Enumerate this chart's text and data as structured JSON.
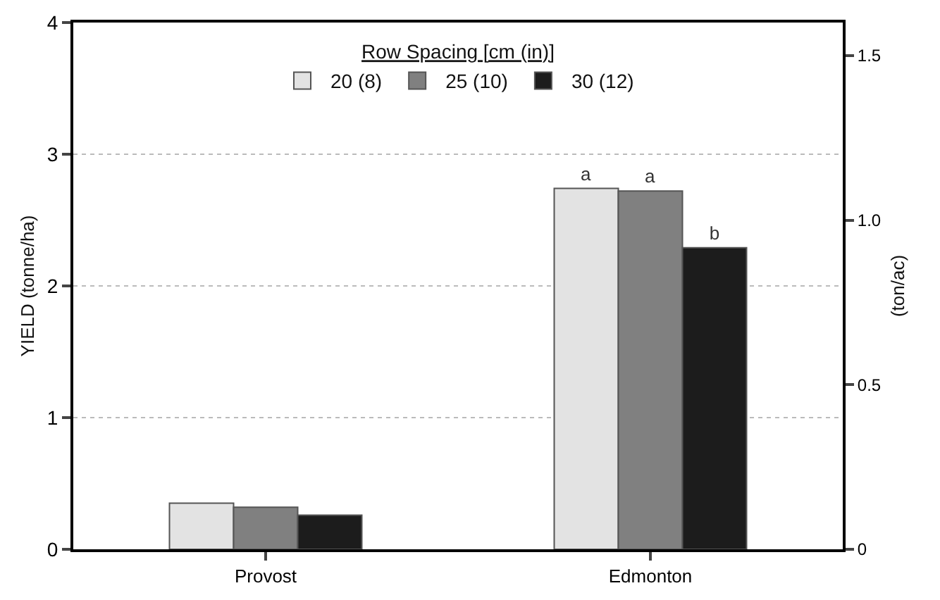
{
  "chart_data": {
    "type": "bar",
    "categories": [
      "Provost",
      "Edmonton"
    ],
    "series": [
      {
        "name": "20 (8)",
        "color": "#e3e3e3",
        "values": [
          0.35,
          2.74
        ],
        "value_labels": [
          null,
          "a"
        ]
      },
      {
        "name": "25 (10)",
        "color": "#808080",
        "values": [
          0.32,
          2.72
        ],
        "value_labels": [
          null,
          "a"
        ]
      },
      {
        "name": "30 (12)",
        "color": "#1c1c1c",
        "values": [
          0.26,
          2.29
        ],
        "value_labels": [
          null,
          "b"
        ]
      }
    ],
    "ylabel": "YIELD (tonne/ha)",
    "y2label": "(ton/ac)",
    "ylim": [
      0,
      4
    ],
    "yticks": [
      0,
      1,
      2,
      3,
      4
    ],
    "y2lim": [
      0,
      1.6
    ],
    "y2ticks": [
      0,
      0.5,
      {
        "value": 1,
        "label": "1.0"
      },
      1.5
    ],
    "legend_title": "Row Spacing [cm (in)]",
    "legend": "top",
    "grid": "y"
  }
}
